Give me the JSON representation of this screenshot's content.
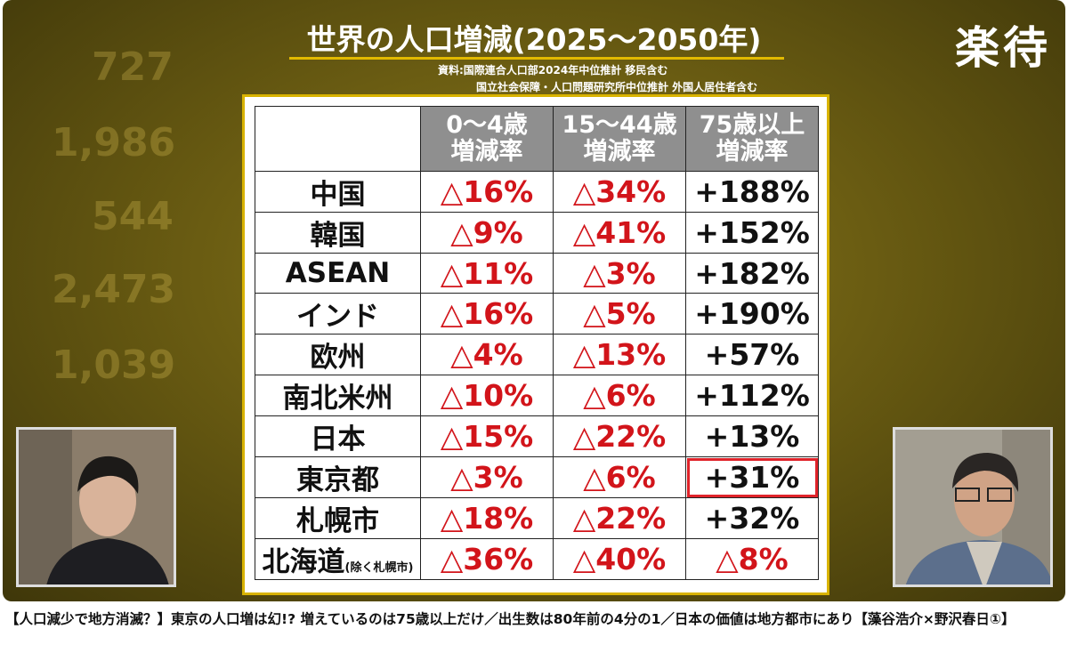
{
  "video": {
    "background_numbers": [
      "727",
      "1,986",
      "544",
      "2,473",
      "1,039"
    ],
    "title": "世界の人口増減(2025～2050年)",
    "logo": "楽待",
    "sources": [
      "資料:国際連合人口部2024年中位推計 移民含む",
      "国立社会保障・人口問題研究所中位推計 外国人居住者含む"
    ],
    "table": {
      "header": [
        [
          "0～4歳",
          "増減率"
        ],
        [
          "15～44歳",
          "増減率"
        ],
        [
          "75歳以上",
          "増減率"
        ]
      ],
      "rows": [
        {
          "label": "中国",
          "cells": [
            "△16%",
            "△34%",
            "+188%"
          ]
        },
        {
          "label": "韓国",
          "cells": [
            "△9%",
            "△41%",
            "+152%"
          ]
        },
        {
          "label": "ASEAN",
          "cells": [
            "△11%",
            "△3%",
            "+182%"
          ]
        },
        {
          "label": "インド",
          "cells": [
            "△16%",
            "△5%",
            "+190%"
          ]
        },
        {
          "label": "欧州",
          "cells": [
            "△4%",
            "△13%",
            "+57%"
          ]
        },
        {
          "label": "南北米州",
          "cells": [
            "△10%",
            "△6%",
            "+112%"
          ]
        },
        {
          "label": "日本",
          "cells": [
            "△15%",
            "△22%",
            "+13%"
          ]
        },
        {
          "label": "東京都",
          "cells": [
            "△3%",
            "△6%",
            "+31%"
          ],
          "highlighted_cell": 2
        },
        {
          "label": "札幌市",
          "cells": [
            "△18%",
            "△22%",
            "+32%"
          ]
        },
        {
          "label": "北海道",
          "note": "(除く札幌市)",
          "cells": [
            "△36%",
            "△40%",
            "△8%"
          ]
        }
      ]
    }
  },
  "caption": "【人口減少で地方消滅？】東京の人口増は幻!? 増えているのは75歳以上だけ／出生数は80年前の4分の1／日本の価値は地方都市にあり【藻谷浩介×野沢春日①】"
}
